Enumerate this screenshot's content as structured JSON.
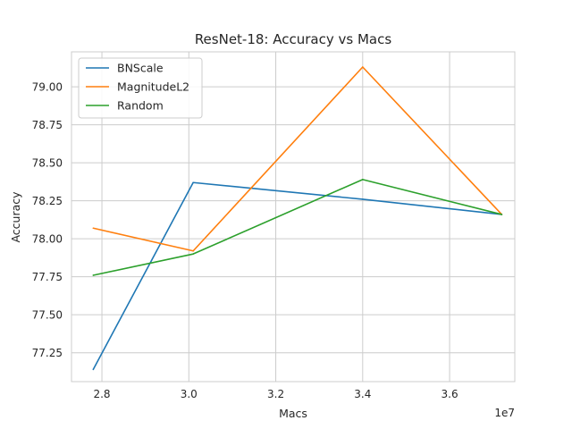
{
  "chart_data": {
    "type": "line",
    "title": "ResNet-18: Accuracy vs Macs",
    "xlabel": "Macs",
    "ylabel": "Accuracy",
    "x_offset_label": "1e7",
    "xlim": [
      2.73,
      3.75
    ],
    "ylim": [
      77.06,
      79.23
    ],
    "xticks": [
      2.8,
      3.0,
      3.2,
      3.4,
      3.6
    ],
    "xtick_labels": [
      "2.8",
      "3.0",
      "3.2",
      "3.4",
      "3.6"
    ],
    "yticks": [
      77.25,
      77.5,
      77.75,
      78.0,
      78.25,
      78.5,
      78.75,
      79.0
    ],
    "ytick_labels": [
      "77.25",
      "77.50",
      "77.75",
      "78.00",
      "78.25",
      "78.50",
      "78.75",
      "79.00"
    ],
    "grid": true,
    "legend_position": "top-left",
    "series": [
      {
        "name": "BNScale",
        "color": "#1f77b4",
        "x": [
          2.78,
          3.01,
          3.4,
          3.72
        ],
        "y": [
          77.14,
          78.37,
          78.26,
          78.16
        ]
      },
      {
        "name": "MagnitudeL2",
        "color": "#ff7f0e",
        "x": [
          2.78,
          3.01,
          3.4,
          3.72
        ],
        "y": [
          78.07,
          77.92,
          79.13,
          78.16
        ]
      },
      {
        "name": "Random",
        "color": "#2ca02c",
        "x": [
          2.78,
          3.01,
          3.4,
          3.72
        ],
        "y": [
          77.76,
          77.9,
          78.39,
          78.16
        ]
      }
    ]
  }
}
